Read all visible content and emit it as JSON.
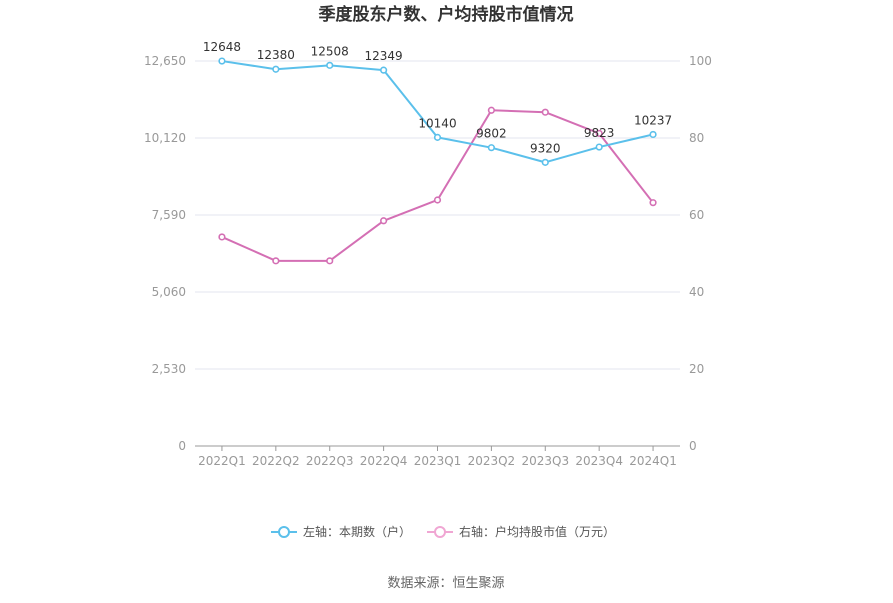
{
  "chart_data": {
    "type": "line",
    "title": "季度股东户数、户均持股市值情况",
    "categories": [
      "2022Q1",
      "2022Q2",
      "2022Q3",
      "2022Q4",
      "2023Q1",
      "2023Q2",
      "2023Q3",
      "2023Q4",
      "2024Q1"
    ],
    "left_axis": {
      "ticks": [
        "0",
        "2,530",
        "5,060",
        "7,590",
        "10,120",
        "12,650"
      ],
      "ylim": [
        0,
        12650
      ]
    },
    "right_axis": {
      "ticks": [
        "0",
        "20",
        "40",
        "60",
        "80",
        "100"
      ],
      "ylim": [
        0,
        100
      ]
    },
    "grid": true,
    "legend_position": "bottom",
    "series": [
      {
        "name": "左轴：本期数（户）",
        "axis": "left",
        "color": "#5bc0eb",
        "values": [
          12648,
          12380,
          12508,
          12349,
          10140,
          9802,
          9320,
          9823,
          10237
        ],
        "labels": [
          "12648",
          "12380",
          "12508",
          "12349",
          "10140",
          "9802",
          "9320",
          "9823",
          "10237"
        ]
      },
      {
        "name": "右轴：户均持股市值（万元）",
        "axis": "right",
        "color": "#d46fb4",
        "values": [
          54.3,
          48.1,
          48.1,
          58.5,
          63.9,
          87.2,
          86.7,
          81.2,
          63.2
        ]
      }
    ]
  },
  "footer": {
    "source": "数据来源：恒生聚源"
  }
}
